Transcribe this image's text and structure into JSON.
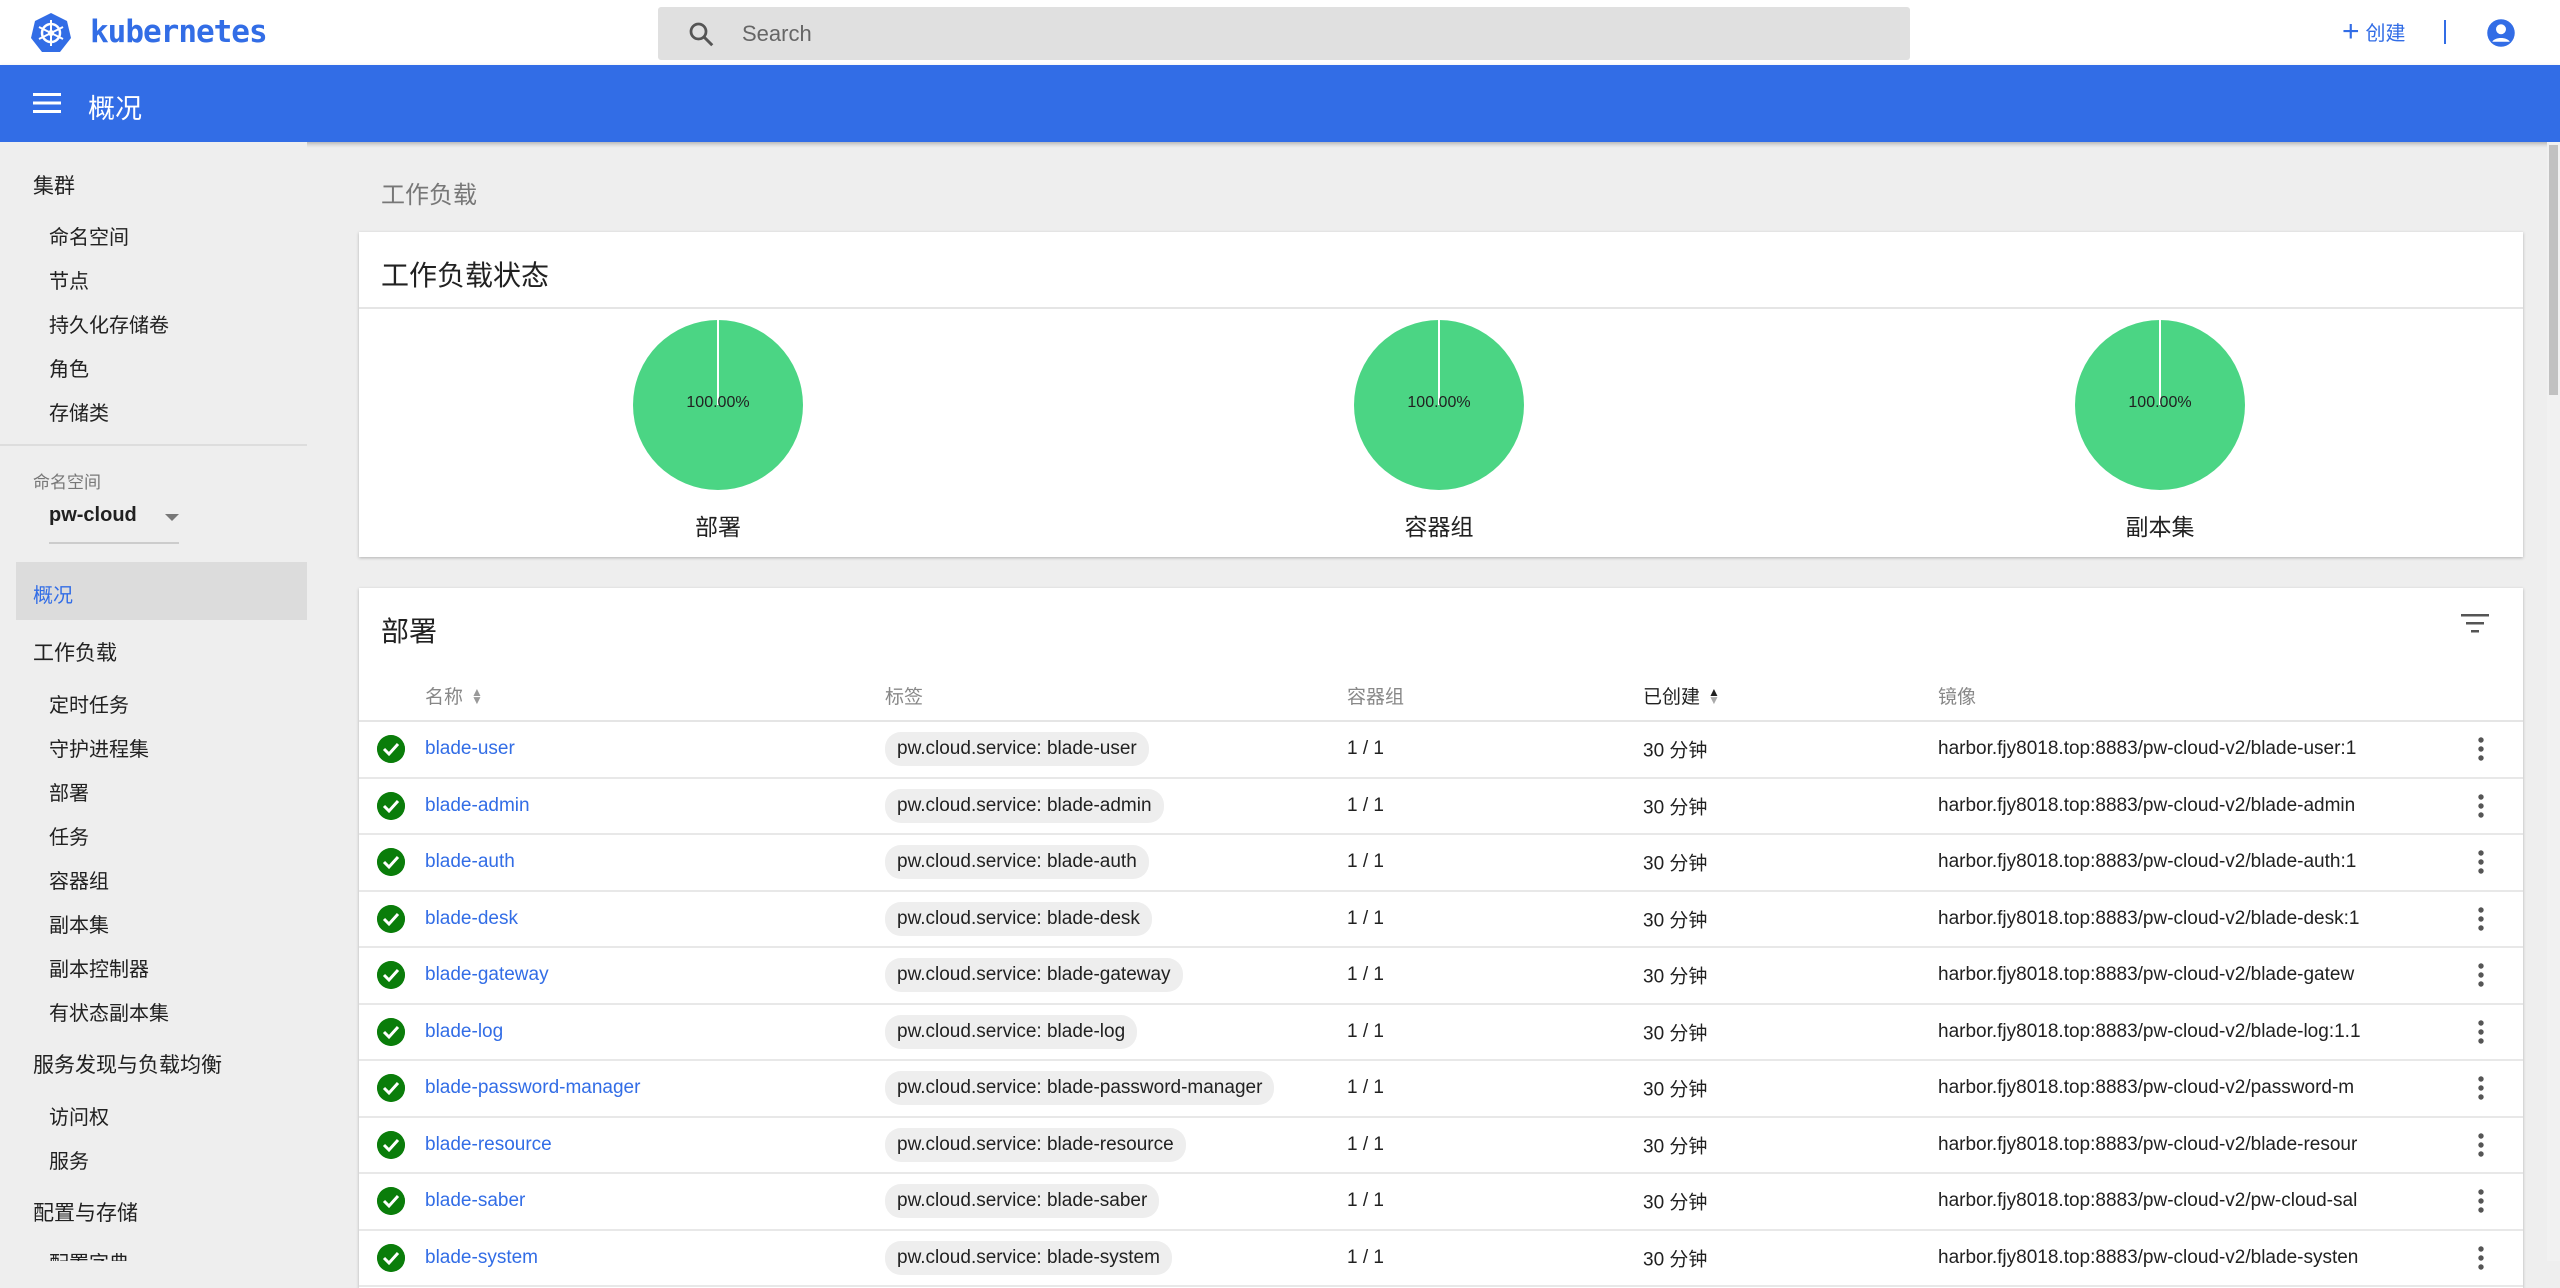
{
  "header": {
    "brand": "kubernetes",
    "search_placeholder": "Search",
    "create_label": "创建"
  },
  "toolbar": {
    "title": "概况"
  },
  "sidebar": {
    "cluster": {
      "label": "集群",
      "items": [
        "命名空间",
        "节点",
        "持久化存储卷",
        "角色",
        "存储类"
      ]
    },
    "namespace": {
      "label": "命名空间",
      "selected": "pw-cloud"
    },
    "overview": "概况",
    "workloads": {
      "label": "工作负载",
      "items": [
        "定时任务",
        "守护进程集",
        "部署",
        "任务",
        "容器组",
        "副本集",
        "副本控制器",
        "有状态副本集"
      ]
    },
    "discovery": {
      "label": "服务发现与负载均衡",
      "items": [
        "访问权",
        "服务"
      ]
    },
    "config": {
      "label": "配置与存储",
      "items": [
        "配置字典"
      ]
    }
  },
  "breadcrumb": "工作负载",
  "status_card": {
    "title": "工作负载状态",
    "charts": [
      {
        "label": "部署",
        "percent": "100.00%",
        "running": 100,
        "color": "#4bd584"
      },
      {
        "label": "容器组",
        "percent": "100.00%",
        "running": 100,
        "color": "#4bd584"
      },
      {
        "label": "副本集",
        "percent": "100.00%",
        "running": 100,
        "color": "#4bd584"
      }
    ]
  },
  "deployments": {
    "title": "部署",
    "columns": {
      "name": "名称",
      "labels": "标签",
      "pods": "容器组",
      "created": "已创建",
      "image": "镜像"
    },
    "rows": [
      {
        "name": "blade-user",
        "label": "pw.cloud.service: blade-user",
        "pods": "1 / 1",
        "created": "30 分钟",
        "image": "harbor.fjy8018.top:8883/pw-cloud-v2/blade-user:1"
      },
      {
        "name": "blade-admin",
        "label": "pw.cloud.service: blade-admin",
        "pods": "1 / 1",
        "created": "30 分钟",
        "image": "harbor.fjy8018.top:8883/pw-cloud-v2/blade-admin"
      },
      {
        "name": "blade-auth",
        "label": "pw.cloud.service: blade-auth",
        "pods": "1 / 1",
        "created": "30 分钟",
        "image": "harbor.fjy8018.top:8883/pw-cloud-v2/blade-auth:1"
      },
      {
        "name": "blade-desk",
        "label": "pw.cloud.service: blade-desk",
        "pods": "1 / 1",
        "created": "30 分钟",
        "image": "harbor.fjy8018.top:8883/pw-cloud-v2/blade-desk:1"
      },
      {
        "name": "blade-gateway",
        "label": "pw.cloud.service: blade-gateway",
        "pods": "1 / 1",
        "created": "30 分钟",
        "image": "harbor.fjy8018.top:8883/pw-cloud-v2/blade-gatew"
      },
      {
        "name": "blade-log",
        "label": "pw.cloud.service: blade-log",
        "pods": "1 / 1",
        "created": "30 分钟",
        "image": "harbor.fjy8018.top:8883/pw-cloud-v2/blade-log:1.1"
      },
      {
        "name": "blade-password-manager",
        "label": "pw.cloud.service: blade-password-manager",
        "pods": "1 / 1",
        "created": "30 分钟",
        "image": "harbor.fjy8018.top:8883/pw-cloud-v2/password-m"
      },
      {
        "name": "blade-resource",
        "label": "pw.cloud.service: blade-resource",
        "pods": "1 / 1",
        "created": "30 分钟",
        "image": "harbor.fjy8018.top:8883/pw-cloud-v2/blade-resour"
      },
      {
        "name": "blade-saber",
        "label": "pw.cloud.service: blade-saber",
        "pods": "1 / 1",
        "created": "30 分钟",
        "image": "harbor.fjy8018.top:8883/pw-cloud-v2/pw-cloud-sal"
      },
      {
        "name": "blade-system",
        "label": "pw.cloud.service: blade-system",
        "pods": "1 / 1",
        "created": "30 分钟",
        "image": "harbor.fjy8018.top:8883/pw-cloud-v2/blade-systen"
      }
    ]
  }
}
